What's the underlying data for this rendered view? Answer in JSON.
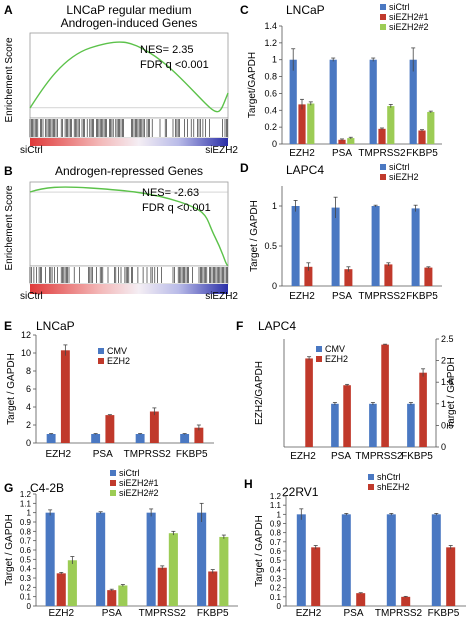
{
  "colors": {
    "blue": "#4a78c2",
    "red": "#c0392b",
    "green": "#9ccc55",
    "gsea": "#5cc24a",
    "axis": "#555555",
    "err": "#444444"
  },
  "gsea": [
    {
      "letter": "A",
      "title_lines": [
        "LNCaP regular medium",
        "Androgen-induced Genes"
      ],
      "ylabel": "Enrichement Score",
      "nes": "NES= 2.35",
      "fdr": "FDR q <0.001",
      "left_label": "siCtrl",
      "right_label": "siEZH2"
    },
    {
      "letter": "B",
      "title_lines": [
        "Androgen-repressed Genes"
      ],
      "ylabel": "Enrichement Score",
      "nes": "NES= -2.63",
      "fdr": "FDR q <0.001",
      "left_label": "siCtrl",
      "right_label": "siEZH2"
    }
  ],
  "chart_data": [
    {
      "panel": "C",
      "type": "bar",
      "title": "LNCaP",
      "ylabel": "Target/GAPDH",
      "categories": [
        "EZH2",
        "PSA",
        "TMPRSS2",
        "FKBP5"
      ],
      "ylim": [
        0,
        1.4
      ],
      "yticks": [
        0,
        0.2,
        0.4,
        0.6,
        0.8,
        1,
        1.2,
        1.4
      ],
      "series": [
        {
          "name": "siCtrl",
          "color": "#4a78c2",
          "values": [
            1.0,
            1.0,
            1.0,
            1.0
          ],
          "errors": [
            0.13,
            0.02,
            0.02,
            0.14
          ]
        },
        {
          "name": "siEZH2#1",
          "color": "#c0392b",
          "values": [
            0.47,
            0.05,
            0.18,
            0.16
          ],
          "errors": [
            0.06,
            0.01,
            0.01,
            0.01
          ]
        },
        {
          "name": "siEZH2#2",
          "color": "#9ccc55",
          "values": [
            0.48,
            0.07,
            0.45,
            0.38
          ],
          "errors": [
            0.02,
            0.01,
            0.02,
            0.01
          ]
        }
      ]
    },
    {
      "panel": "D",
      "type": "bar",
      "title": "LAPC4",
      "ylabel": "Target / GAPDH",
      "categories": [
        "EZH2",
        "PSA",
        "TMPRSS2",
        "FKBP5"
      ],
      "ylim": [
        0,
        1.25
      ],
      "yticks": [
        0,
        0.5,
        1
      ],
      "series": [
        {
          "name": "siCtrl",
          "color": "#4a78c2",
          "values": [
            1.0,
            0.98,
            1.0,
            0.97
          ],
          "errors": [
            0.07,
            0.13,
            0.01,
            0.04
          ]
        },
        {
          "name": "siEZH2",
          "color": "#c0392b",
          "values": [
            0.24,
            0.21,
            0.27,
            0.23
          ],
          "errors": [
            0.05,
            0.03,
            0.02,
            0.01
          ]
        }
      ]
    },
    {
      "panel": "E",
      "type": "bar",
      "title": "LNCaP",
      "ylabel": "Target / GAPDH",
      "categories": [
        "EZH2",
        "PSA",
        "TMPRSS2",
        "FKBP5"
      ],
      "ylim": [
        0,
        12
      ],
      "yticks": [
        0,
        2,
        4,
        6,
        8,
        10,
        12
      ],
      "series": [
        {
          "name": "CMV",
          "color": "#4a78c2",
          "values": [
            1.0,
            1.0,
            1.0,
            1.0
          ],
          "errors": [
            0.05,
            0.05,
            0.05,
            0.05
          ]
        },
        {
          "name": "EZH2",
          "color": "#c0392b",
          "values": [
            10.3,
            3.1,
            3.5,
            1.7
          ],
          "errors": [
            0.6,
            0.05,
            0.4,
            0.3
          ]
        }
      ]
    },
    {
      "panel": "F",
      "type": "bar",
      "title": "LAPC4",
      "ylabel": "EZH2/GAPDH",
      "ylabel_right": "Target / GAPDH",
      "categories": [
        "EZH2",
        "PSA",
        "TMPRSS2",
        "FKBP5"
      ],
      "ylim_right": [
        0,
        2.5
      ],
      "yticks_right": [
        0,
        0.5,
        1,
        1.5,
        2,
        2.5
      ],
      "series": [
        {
          "name": "CMV",
          "color": "#4a78c2",
          "values": [
            0,
            1.0,
            1.0,
            1.0
          ],
          "errors": [
            0,
            0.03,
            0.03,
            0.03
          ]
        },
        {
          "name": "EZH2",
          "color": "#c0392b",
          "values": [
            2.05,
            1.43,
            2.37,
            1.72
          ],
          "errors": [
            0.04,
            0.02,
            0.01,
            0.09
          ]
        }
      ]
    },
    {
      "panel": "G",
      "type": "bar",
      "title": "C4-2B",
      "ylabel": "Target / GAPDH",
      "categories": [
        "EZH2",
        "PSA",
        "TMPRSS2",
        "FKBP5"
      ],
      "ylim": [
        0,
        1.2
      ],
      "yticks": [
        0,
        0.1,
        0.2,
        0.3,
        0.4,
        0.5,
        0.6,
        0.7,
        0.8,
        0.9,
        1,
        1.1,
        1.2
      ],
      "series": [
        {
          "name": "siCtrl",
          "color": "#4a78c2",
          "values": [
            1.0,
            1.0,
            1.0,
            1.0
          ],
          "errors": [
            0.03,
            0.01,
            0.04,
            0.1
          ]
        },
        {
          "name": "siEZH2#1",
          "color": "#c0392b",
          "values": [
            0.35,
            0.17,
            0.41,
            0.37
          ],
          "errors": [
            0.01,
            0.01,
            0.02,
            0.02
          ]
        },
        {
          "name": "siEZH2#2",
          "color": "#9ccc55",
          "values": [
            0.49,
            0.22,
            0.78,
            0.74
          ],
          "errors": [
            0.04,
            0.01,
            0.02,
            0.02
          ]
        }
      ]
    },
    {
      "panel": "H",
      "type": "bar",
      "title": "22RV1",
      "ylabel": "Target / GAPDH",
      "categories": [
        "EZH2",
        "PSA",
        "TMPRSS2",
        "FKBP5"
      ],
      "ylim": [
        0,
        1.2
      ],
      "yticks": [
        0,
        0.1,
        0.2,
        0.3,
        0.4,
        0.5,
        0.6,
        0.7,
        0.8,
        0.9,
        1,
        1.1,
        1.2
      ],
      "series": [
        {
          "name": "shCtrl",
          "color": "#4a78c2",
          "values": [
            1.0,
            1.0,
            1.0,
            1.0
          ],
          "errors": [
            0.06,
            0.01,
            0.01,
            0.01
          ]
        },
        {
          "name": "shEZH2",
          "color": "#c0392b",
          "values": [
            0.64,
            0.14,
            0.1,
            0.64
          ],
          "errors": [
            0.02,
            0.005,
            0.005,
            0.02
          ]
        }
      ]
    }
  ]
}
